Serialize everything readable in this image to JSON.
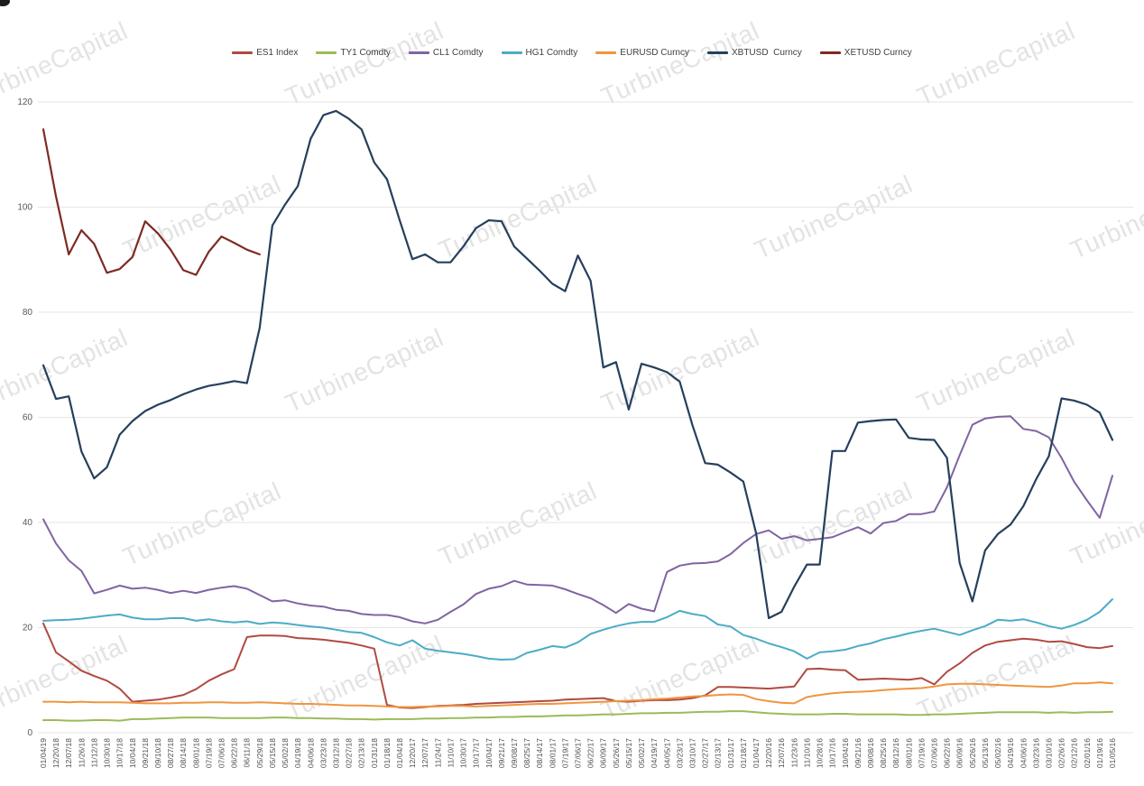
{
  "watermark": {
    "text": "TurbineCapital"
  },
  "legend_position": "top",
  "chart_data": {
    "type": "line",
    "title": "",
    "grid": "horizontal",
    "legend_position": "top",
    "y_axis": {
      "min": 0,
      "max": 120,
      "tick_interval": 20,
      "ticks": [
        0,
        20,
        40,
        60,
        80,
        100,
        120
      ]
    },
    "x_labels": [
      "01/04/19",
      "12/20/18",
      "12/07/18",
      "11/26/18",
      "11/12/18",
      "10/30/18",
      "10/17/18",
      "10/04/18",
      "09/21/18",
      "09/10/18",
      "08/27/18",
      "08/14/18",
      "08/01/18",
      "07/19/18",
      "07/06/18",
      "06/22/18",
      "06/11/18",
      "05/29/18",
      "05/15/18",
      "05/02/18",
      "04/19/18",
      "04/06/18",
      "03/23/18",
      "03/12/18",
      "02/27/18",
      "02/13/18",
      "01/31/18",
      "01/18/18",
      "01/04/18",
      "12/20/17",
      "12/07/17",
      "11/24/17",
      "11/10/17",
      "10/30/17",
      "10/17/17",
      "10/04/17",
      "09/21/17",
      "09/08/17",
      "08/25/17",
      "08/14/17",
      "08/01/17",
      "07/19/17",
      "07/06/17",
      "06/22/17",
      "06/09/17",
      "05/26/17",
      "05/15/17",
      "05/02/17",
      "04/19/17",
      "04/05/17",
      "03/23/17",
      "03/10/17",
      "02/27/17",
      "02/13/17",
      "01/31/17",
      "01/18/17",
      "01/04/17",
      "12/20/16",
      "12/07/16",
      "11/23/16",
      "11/10/16",
      "10/28/16",
      "10/17/16",
      "10/04/16",
      "09/21/16",
      "09/08/16",
      "08/25/16",
      "08/12/16",
      "08/01/16",
      "07/19/16",
      "07/06/16",
      "06/22/16",
      "06/09/16",
      "05/26/16",
      "05/13/16",
      "05/02/16",
      "04/19/16",
      "04/06/16",
      "03/23/16",
      "03/10/16",
      "02/26/16",
      "02/12/16",
      "02/01/16",
      "01/19/16",
      "01/05/16"
    ],
    "series": [
      {
        "name": "ES1 Index",
        "color": "#b04a42",
        "width": 2,
        "values": [
          20.8,
          15.3,
          13.6,
          11.8,
          10.8,
          9.9,
          8.4,
          5.9,
          6.1,
          6.3,
          6.7,
          7.2,
          8.3,
          9.9,
          11.1,
          12.1,
          18.2,
          18.5,
          18.5,
          18.4,
          18.0,
          17.9,
          17.7,
          17.4,
          17.1,
          16.6,
          16.0,
          5.3,
          4.8,
          4.7,
          4.9,
          5.1,
          5.2,
          5.3,
          5.5,
          5.6,
          5.7,
          5.8,
          5.9,
          6.0,
          6.1,
          6.3,
          6.4,
          6.5,
          6.6,
          6.0,
          5.9,
          6.1,
          6.2,
          6.2,
          6.3,
          6.6,
          7.1,
          8.7,
          8.7,
          8.6,
          8.5,
          8.4,
          8.6,
          8.8,
          12.1,
          12.2,
          12.0,
          11.9,
          10.1,
          10.2,
          10.3,
          10.2,
          10.1,
          10.4,
          9.2,
          11.6,
          13.2,
          15.2,
          16.6,
          17.3,
          17.6,
          17.9,
          17.7,
          17.3,
          17.4,
          16.9,
          16.3,
          16.1,
          16.5
        ]
      },
      {
        "name": "TY1 Comdty",
        "color": "#9bbb59",
        "width": 2,
        "values": [
          2.4,
          2.4,
          2.3,
          2.3,
          2.4,
          2.4,
          2.3,
          2.6,
          2.6,
          2.7,
          2.8,
          2.9,
          2.9,
          2.9,
          2.8,
          2.8,
          2.8,
          2.8,
          2.9,
          2.9,
          2.8,
          2.8,
          2.7,
          2.7,
          2.6,
          2.6,
          2.5,
          2.6,
          2.6,
          2.6,
          2.7,
          2.7,
          2.8,
          2.8,
          2.9,
          2.9,
          3.0,
          3.0,
          3.1,
          3.1,
          3.2,
          3.3,
          3.3,
          3.4,
          3.5,
          3.5,
          3.6,
          3.7,
          3.7,
          3.8,
          3.8,
          3.9,
          4.0,
          4.0,
          4.1,
          4.1,
          3.9,
          3.7,
          3.6,
          3.5,
          3.5,
          3.5,
          3.6,
          3.6,
          3.5,
          3.5,
          3.5,
          3.5,
          3.4,
          3.4,
          3.5,
          3.5,
          3.6,
          3.7,
          3.8,
          3.9,
          3.9,
          3.9,
          3.9,
          3.8,
          3.9,
          3.8,
          3.9,
          3.9,
          4.0
        ]
      },
      {
        "name": "CL1 Comdty",
        "color": "#8064a2",
        "width": 2,
        "values": [
          40.6,
          36.0,
          32.8,
          30.8,
          26.5,
          27.2,
          28.0,
          27.4,
          27.6,
          27.2,
          26.6,
          27.0,
          26.6,
          27.2,
          27.6,
          27.9,
          27.4,
          26.2,
          25.0,
          25.2,
          24.6,
          24.2,
          24.0,
          23.4,
          23.2,
          22.6,
          22.4,
          22.4,
          22.0,
          21.2,
          20.8,
          21.5,
          23.0,
          24.4,
          26.4,
          27.4,
          27.9,
          28.9,
          28.2,
          28.1,
          28.0,
          27.3,
          26.4,
          25.6,
          24.3,
          22.8,
          24.5,
          23.6,
          23.1,
          30.6,
          31.8,
          32.2,
          32.3,
          32.6,
          34.0,
          36.1,
          37.8,
          38.5,
          36.9,
          37.4,
          36.6,
          36.9,
          37.2,
          38.2,
          39.1,
          37.9,
          39.9,
          40.3,
          41.6,
          41.6,
          42.1,
          46.7,
          52.8,
          58.6,
          59.8,
          60.1,
          60.2,
          57.8,
          57.4,
          56.2,
          52.3,
          47.7,
          44.2,
          40.9,
          48.9
        ]
      },
      {
        "name": "HG1 Comdty",
        "color": "#4bacc6",
        "width": 2,
        "values": [
          21.3,
          21.4,
          21.5,
          21.7,
          22.0,
          22.3,
          22.5,
          21.9,
          21.6,
          21.6,
          21.8,
          21.8,
          21.3,
          21.6,
          21.2,
          21.0,
          21.2,
          20.7,
          21.0,
          20.8,
          20.5,
          20.2,
          20.0,
          19.6,
          19.2,
          19.0,
          18.2,
          17.2,
          16.6,
          17.6,
          16.0,
          15.6,
          15.3,
          15.0,
          14.6,
          14.1,
          13.9,
          14.0,
          15.2,
          15.8,
          16.5,
          16.2,
          17.2,
          18.8,
          19.6,
          20.3,
          20.8,
          21.1,
          21.1,
          22.0,
          23.2,
          22.6,
          22.2,
          20.6,
          20.2,
          18.6,
          17.9,
          17.0,
          16.3,
          15.5,
          14.1,
          15.3,
          15.5,
          15.8,
          16.5,
          17.0,
          17.8,
          18.3,
          18.9,
          19.4,
          19.8,
          19.2,
          18.6,
          19.5,
          20.3,
          21.5,
          21.3,
          21.6,
          21.0,
          20.3,
          19.8,
          20.5,
          21.5,
          23.0,
          25.4
        ]
      },
      {
        "name": "EURUSD Curncy",
        "color": "#f0953f",
        "width": 2,
        "values": [
          5.9,
          5.9,
          5.8,
          5.9,
          5.8,
          5.8,
          5.8,
          5.7,
          5.6,
          5.6,
          5.6,
          5.7,
          5.7,
          5.8,
          5.8,
          5.7,
          5.7,
          5.8,
          5.7,
          5.6,
          5.5,
          5.5,
          5.4,
          5.3,
          5.2,
          5.2,
          5.1,
          5.0,
          4.9,
          4.9,
          5.0,
          5.0,
          5.1,
          5.1,
          5.0,
          5.1,
          5.2,
          5.3,
          5.4,
          5.5,
          5.5,
          5.6,
          5.7,
          5.8,
          5.9,
          6.0,
          6.1,
          6.2,
          6.4,
          6.5,
          6.7,
          6.9,
          7.0,
          7.2,
          7.3,
          7.2,
          6.4,
          6.0,
          5.7,
          5.6,
          6.8,
          7.2,
          7.5,
          7.7,
          7.8,
          7.9,
          8.1,
          8.3,
          8.4,
          8.5,
          8.8,
          9.2,
          9.3,
          9.3,
          9.2,
          9.1,
          9.0,
          8.9,
          8.8,
          8.7,
          9.0,
          9.4,
          9.4,
          9.6,
          9.4
        ]
      },
      {
        "name": "XBTUSD  Curncy",
        "color": "#263f5d",
        "width": 2.2,
        "values": [
          69.9,
          63.5,
          64.0,
          53.5,
          48.4,
          50.5,
          56.7,
          59.3,
          61.2,
          62.4,
          63.3,
          64.4,
          65.3,
          66.0,
          66.4,
          66.9,
          66.5,
          77.0,
          96.5,
          100.5,
          104.0,
          113.0,
          117.5,
          118.3,
          116.8,
          114.8,
          108.5,
          105.3,
          97.5,
          90.1,
          91.0,
          89.5,
          89.5,
          92.5,
          96.0,
          97.5,
          97.3,
          92.5,
          90.2,
          87.9,
          85.4,
          84.0,
          90.8,
          86.0,
          69.5,
          70.5,
          61.5,
          70.2,
          69.5,
          68.6,
          66.8,
          58.5,
          51.3,
          51.0,
          49.5,
          47.8,
          38.0,
          21.8,
          23.0,
          27.8,
          32.0,
          32.0,
          53.6,
          53.6,
          59.0,
          59.3,
          59.5,
          59.6,
          56.1,
          55.8,
          55.7,
          52.3,
          32.3,
          25.0,
          34.7,
          37.8,
          39.6,
          43.1,
          48.2,
          52.6,
          63.6,
          63.2,
          62.4,
          60.9,
          55.7
        ]
      },
      {
        "name": "XETUSD Curncy",
        "color": "#7d2b23",
        "width": 2.2,
        "values": [
          114.8,
          102.0,
          91.0,
          95.6,
          93.0,
          87.5,
          88.2,
          90.5,
          97.3,
          95.0,
          91.9,
          88.0,
          87.1,
          91.5,
          94.4,
          93.2,
          91.9,
          91.0,
          null,
          null,
          null,
          null,
          null,
          null,
          null,
          null,
          null,
          null,
          null,
          null,
          null,
          null,
          null,
          null,
          null,
          null,
          null,
          null,
          null,
          null,
          null,
          null,
          null,
          null,
          null,
          null,
          null,
          null,
          null,
          null,
          null,
          null,
          null,
          null,
          null,
          null,
          null,
          null,
          null,
          null,
          null,
          null,
          null,
          null,
          null,
          null,
          null,
          null,
          null,
          null,
          null,
          null,
          null,
          null,
          null,
          null,
          null,
          null,
          null,
          null,
          null,
          null,
          null,
          null,
          null
        ]
      }
    ]
  }
}
